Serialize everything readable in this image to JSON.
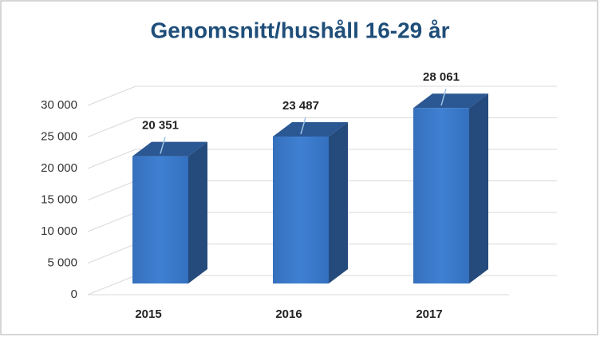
{
  "chart_data": {
    "type": "bar3d",
    "title": "Genomsnitt/hushåll 16-29 år",
    "categories": [
      "2015",
      "2016",
      "2017"
    ],
    "values": [
      20351,
      23487,
      28061
    ],
    "value_labels": [
      "20 351",
      "23 487",
      "28 061"
    ],
    "color": "#3a78c8",
    "ylim": [
      0,
      30000
    ],
    "yticks": [
      0,
      {
        "value": 5000,
        "label": "5 000"
      },
      {
        "value": 10000,
        "label": "10 000"
      },
      {
        "value": 15000,
        "label": "15 000"
      },
      {
        "value": 20000,
        "label": "20 000"
      },
      {
        "value": 25000,
        "label": "25 000"
      },
      {
        "value": 30000,
        "label": "30 000"
      }
    ],
    "grid": true
  }
}
